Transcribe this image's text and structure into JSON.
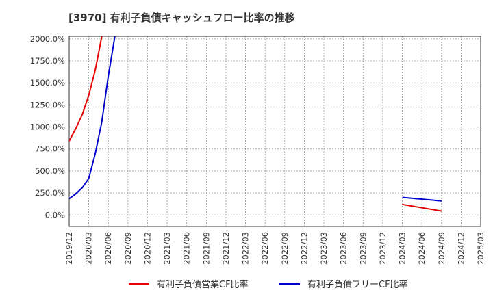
{
  "chart_data": {
    "type": "line",
    "title": "[3970]  有利子負債キャッシュフロー比率の推移",
    "xlabel": "",
    "ylabel": "",
    "ylim": [
      -130,
      2030
    ],
    "yticks": [
      0,
      250,
      500,
      750,
      1000,
      1250,
      1500,
      1750,
      2000
    ],
    "ytick_labels": [
      "0.0%",
      "250.0%",
      "500.0%",
      "750.0%",
      "1000.0%",
      "1250.0%",
      "1500.0%",
      "1750.0%",
      "2000.0%"
    ],
    "xlim": [
      "2019/12",
      "2025/03"
    ],
    "xtick_labels": [
      "2019/12",
      "2020/03",
      "2020/06",
      "2020/09",
      "2020/12",
      "2021/03",
      "2021/06",
      "2021/09",
      "2021/12",
      "2022/03",
      "2022/06",
      "2022/09",
      "2022/12",
      "2023/03",
      "2023/06",
      "2023/09",
      "2023/12",
      "2024/03",
      "2024/06",
      "2024/09",
      "2024/12",
      "2025/03"
    ],
    "grid": true,
    "legend_position": "bottom",
    "series": [
      {
        "name": "有利子負債営業CF比率",
        "color": "#e60000",
        "points": [
          {
            "x": "2019/12",
            "y": 840
          },
          {
            "x": "2020/01",
            "y": 980
          },
          {
            "x": "2020/02",
            "y": 1140
          },
          {
            "x": "2020/03",
            "y": 1360
          },
          {
            "x": "2020/04",
            "y": 1650
          },
          {
            "x": "2020/05",
            "y": 2030
          }
        ]
      },
      {
        "name": "有利子負債フリーCF比率",
        "color": "#0000cc",
        "points": [
          {
            "x": "2019/12",
            "y": 185
          },
          {
            "x": "2020/01",
            "y": 240
          },
          {
            "x": "2020/02",
            "y": 310
          },
          {
            "x": "2020/03",
            "y": 415
          },
          {
            "x": "2020/04",
            "y": 700
          },
          {
            "x": "2020/05",
            "y": 1060
          },
          {
            "x": "2020/06",
            "y": 1580
          },
          {
            "x": "2020/07",
            "y": 2030
          }
        ]
      },
      {
        "name": "有利子負債営業CF比率",
        "color": "#e60000",
        "points": [
          {
            "x": "2024/03",
            "y": 120
          },
          {
            "x": "2024/09",
            "y": 45
          }
        ]
      },
      {
        "name": "有利子負債フリーCF比率",
        "color": "#0000cc",
        "points": [
          {
            "x": "2024/03",
            "y": 200
          },
          {
            "x": "2024/09",
            "y": 160
          }
        ]
      }
    ],
    "legend": [
      {
        "label": "有利子負債営業CF比率",
        "color": "#e60000"
      },
      {
        "label": "有利子負債フリーCF比率",
        "color": "#0000cc"
      }
    ]
  }
}
